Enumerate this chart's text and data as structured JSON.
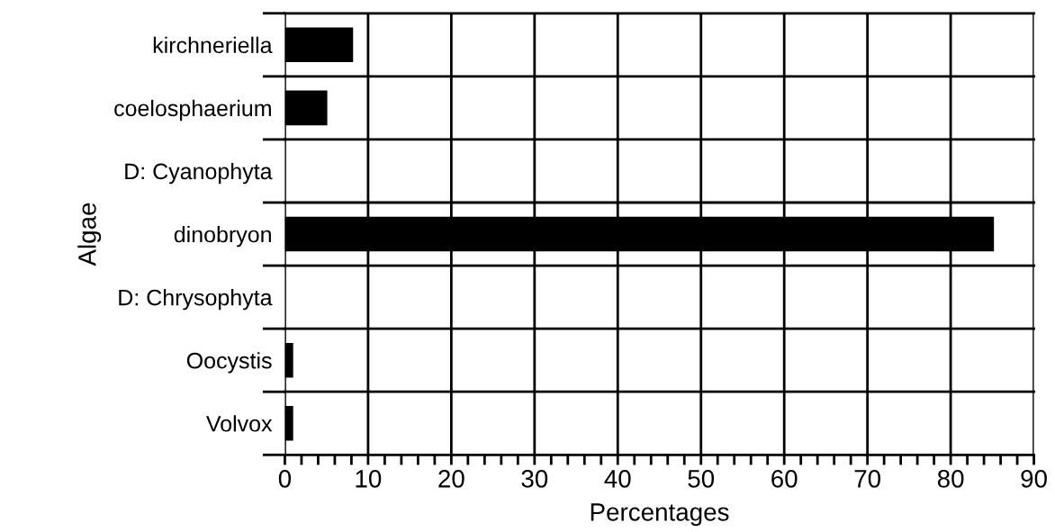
{
  "chart_data": {
    "type": "bar",
    "orientation": "horizontal",
    "xlabel": "Percentages",
    "ylabel": "Algae",
    "categories": [
      "kirchneriella",
      "coelosphaerium",
      "D: Cyanophyta",
      "dinobryon",
      "D: Chrysophyta",
      "Oocystis",
      "Volvox"
    ],
    "values": [
      8.2,
      5.1,
      null,
      85.2,
      null,
      1.0,
      1.0
    ],
    "color": "#000000",
    "xlim": [
      0,
      90
    ],
    "xticks": [
      0,
      {
        "value": 2,
        "label": null
      },
      {
        "value": 4,
        "label": null
      },
      {
        "value": 6,
        "label": null
      },
      {
        "value": 8,
        "label": null
      },
      10,
      {
        "value": 12,
        "label": null
      },
      {
        "value": 14,
        "label": null
      },
      {
        "value": 16,
        "label": null
      },
      {
        "value": 18,
        "label": null
      },
      20,
      {
        "value": 22,
        "label": null
      },
      {
        "value": 24,
        "label": null
      },
      {
        "value": 26,
        "label": null
      },
      {
        "value": 28,
        "label": null
      },
      30,
      {
        "value": 32,
        "label": null
      },
      {
        "value": 34,
        "label": null
      },
      {
        "value": 36,
        "label": null
      },
      {
        "value": 38,
        "label": null
      },
      40,
      {
        "value": 42,
        "label": null
      },
      {
        "value": 44,
        "label": null
      },
      {
        "value": 46,
        "label": null
      },
      {
        "value": 48,
        "label": null
      },
      50,
      {
        "value": 52,
        "label": null
      },
      {
        "value": 54,
        "label": null
      },
      {
        "value": 56,
        "label": null
      },
      {
        "value": 58,
        "label": null
      },
      60,
      {
        "value": 62,
        "label": null
      },
      {
        "value": 64,
        "label": null
      },
      {
        "value": 66,
        "label": null
      },
      {
        "value": 68,
        "label": null
      },
      70,
      {
        "value": 72,
        "label": null
      },
      {
        "value": 74,
        "label": null
      },
      {
        "value": 76,
        "label": null
      },
      {
        "value": 78,
        "label": null
      },
      80,
      {
        "value": 82,
        "label": null
      },
      {
        "value": 84,
        "label": null
      },
      {
        "value": 86,
        "label": null
      },
      {
        "value": 88,
        "label": null
      },
      90
    ],
    "grid": true
  }
}
